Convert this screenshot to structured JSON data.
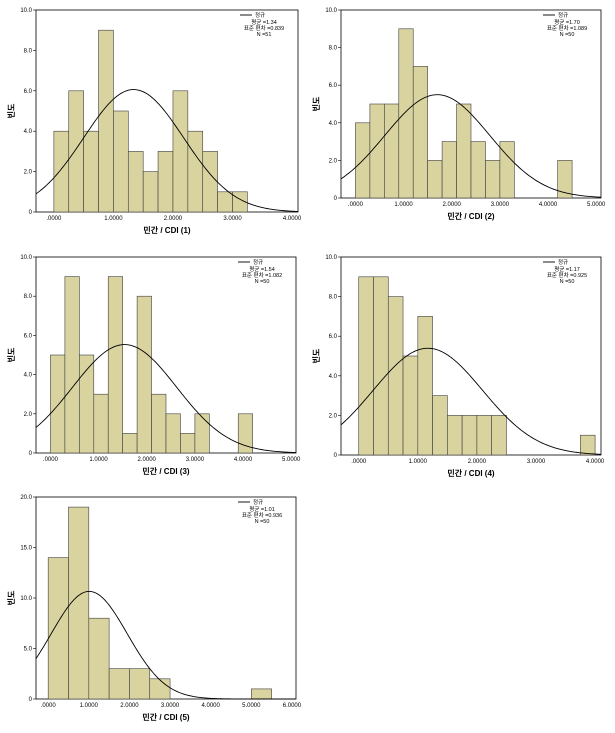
{
  "chart_data": [
    {
      "type": "bar",
      "subtype": "histogram",
      "bin_width": 0.25,
      "bin_start": 0.0,
      "values": [
        4,
        6,
        4,
        9,
        5,
        3,
        2,
        3,
        6,
        4,
        3,
        1,
        1
      ],
      "xlim": [
        -0.3,
        4.1
      ],
      "ylim": [
        0,
        10
      ],
      "x_ticks": [
        0,
        1,
        2,
        3,
        4
      ],
      "x_tick_labels": [
        ".0000",
        "1.0000",
        "2.0000",
        "3.0000",
        "4.0000"
      ],
      "y_ticks": [
        0,
        2,
        4,
        6,
        8,
        10
      ],
      "y_tick_labels": [
        "0",
        "2.0",
        "4.0",
        "6.0",
        "8.0",
        "10.0"
      ],
      "xlabel": "민간 / CDI (1)",
      "ylabel": "빈도",
      "legend_label": "정규",
      "stats": {
        "mean": "평균 =1.34",
        "sd": "표준 편차 =0.839",
        "n": "N =51"
      },
      "normal": {
        "mean": 1.34,
        "sd": 0.839,
        "n": 51
      }
    },
    {
      "type": "bar",
      "subtype": "histogram",
      "bin_width": 0.3,
      "bin_start": 0.0,
      "values": [
        4,
        5,
        5,
        9,
        7,
        2,
        3,
        5,
        3,
        2,
        3,
        0,
        0,
        0,
        2
      ],
      "xlim": [
        -0.3,
        5.1
      ],
      "ylim": [
        0,
        10
      ],
      "x_ticks": [
        0,
        1,
        2,
        3,
        4,
        5
      ],
      "x_tick_labels": [
        ".0000",
        "1.0000",
        "2.0000",
        "3.0000",
        "4.0000",
        "5.0000"
      ],
      "y_ticks": [
        0,
        2,
        4,
        6,
        8,
        10
      ],
      "y_tick_labels": [
        "0",
        "2.0",
        "4.0",
        "6.0",
        "8.0",
        "10.0"
      ],
      "xlabel": "민간 / CDI (2)",
      "ylabel": "빈도",
      "legend_label": "정규",
      "stats": {
        "mean": "평균 =1.70",
        "sd": "표준 편차 =1.089",
        "n": "N =50"
      },
      "normal": {
        "mean": 1.7,
        "sd": 1.089,
        "n": 50
      }
    },
    {
      "type": "bar",
      "subtype": "histogram",
      "bin_width": 0.3,
      "bin_start": 0.0,
      "values": [
        5,
        9,
        5,
        3,
        9,
        1,
        8,
        3,
        2,
        1,
        2,
        0,
        0,
        2
      ],
      "xlim": [
        -0.3,
        5.1
      ],
      "ylim": [
        0,
        10
      ],
      "x_ticks": [
        0,
        1,
        2,
        3,
        4,
        5
      ],
      "x_tick_labels": [
        ".0000",
        "1.0000",
        "2.0000",
        "3.0000",
        "4.0000",
        "5.0000"
      ],
      "y_ticks": [
        0,
        2,
        4,
        6,
        8,
        10
      ],
      "y_tick_labels": [
        "0",
        "2.0",
        "4.0",
        "6.0",
        "8.0",
        "10.0"
      ],
      "xlabel": "민간 / CDI (3)",
      "ylabel": "빈도",
      "legend_label": "정규",
      "stats": {
        "mean": "평균 =1.54",
        "sd": "표준 편차 =1.082",
        "n": "N =50"
      },
      "normal": {
        "mean": 1.54,
        "sd": 1.082,
        "n": 50
      }
    },
    {
      "type": "bar",
      "subtype": "histogram",
      "bin_width": 0.25,
      "bin_start": 0.0,
      "values": [
        9,
        9,
        8,
        5,
        7,
        3,
        2,
        2,
        2,
        2,
        0,
        0,
        0,
        0,
        0,
        1
      ],
      "xlim": [
        -0.3,
        4.1
      ],
      "ylim": [
        0,
        10
      ],
      "x_ticks": [
        0,
        1,
        2,
        3,
        4
      ],
      "x_tick_labels": [
        ".0000",
        "1.0000",
        "2.0000",
        "3.0000",
        "4.0000"
      ],
      "y_ticks": [
        0,
        2,
        4,
        6,
        8,
        10
      ],
      "y_tick_labels": [
        "0",
        "2.0",
        "4.0",
        "6.0",
        "8.0",
        "10.0"
      ],
      "xlabel": "민간 / CDI (4)",
      "ylabel": "빈도",
      "legend_label": "정규",
      "stats": {
        "mean": "평균 =1.17",
        "sd": "표준 편차 =0.925",
        "n": "N =50"
      },
      "normal": {
        "mean": 1.17,
        "sd": 0.925,
        "n": 50
      }
    },
    {
      "type": "bar",
      "subtype": "histogram",
      "bin_width": 0.5,
      "bin_start": 0.0,
      "values": [
        14,
        19,
        8,
        3,
        3,
        2,
        0,
        0,
        0,
        0,
        1
      ],
      "xlim": [
        -0.3,
        6.1
      ],
      "ylim": [
        0,
        20
      ],
      "x_ticks": [
        0,
        1,
        2,
        3,
        4,
        5,
        6
      ],
      "x_tick_labels": [
        ".0000",
        "1.0000",
        "2.0000",
        "3.0000",
        "4.0000",
        "5.0000",
        "6.0000"
      ],
      "y_ticks": [
        0,
        5,
        10,
        15,
        20
      ],
      "y_tick_labels": [
        "0",
        "5.0",
        "10.0",
        "15.0",
        "20.0"
      ],
      "xlabel": "민간 / CDI (5)",
      "ylabel": "빈도",
      "legend_label": "정규",
      "stats": {
        "mean": "평균 =1.01",
        "sd": "표준 편차 =0.936",
        "n": "N =50"
      },
      "normal": {
        "mean": 1.01,
        "sd": 0.936,
        "n": 50
      }
    }
  ],
  "colors": {
    "bar_fill": "#d9d3a0",
    "bar_stroke": "#3f3f3f",
    "curve": "#000000",
    "plot_frame": "#000000"
  }
}
